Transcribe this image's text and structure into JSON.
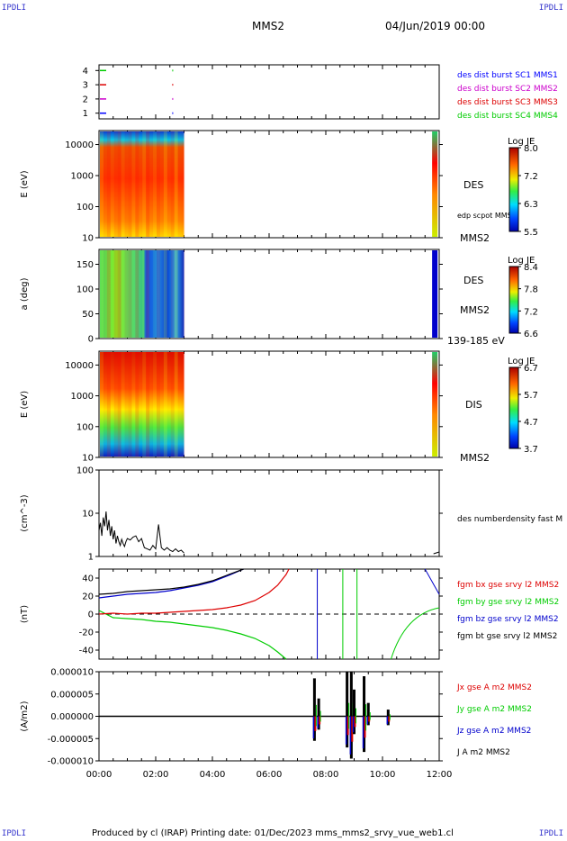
{
  "header": {
    "corner_tl": "IPDLI",
    "corner_tr": "IPDLI",
    "corner_bl": "IPDLI",
    "corner_br": "IPDLI",
    "spacecraft": "MMS2",
    "date": "04/Jun/2019 00:00"
  },
  "footer": {
    "text": "Produced by cl (IRAP)   Printing date: 01/Dec/2023   mms_mms2_srvy_vue_web1.cl"
  },
  "colors": {
    "sc1": "#0000ff",
    "sc2": "#cc00cc",
    "sc3": "#dd0000",
    "sc4": "#00cc00",
    "bx": "#dd0000",
    "by": "#00cc00",
    "bz": "#0000cc",
    "bt": "#000000"
  },
  "chart_data": [
    {
      "id": "burst",
      "type": "scatter",
      "ylim": [
        0.6,
        4.4
      ],
      "yticks": [
        "1",
        "2",
        "3",
        "4"
      ],
      "series": [
        {
          "name": "des dist burst SC1 MMS1",
          "color": "#0000ff",
          "y": 1
        },
        {
          "name": "des dist burst SC2 MMS2",
          "color": "#cc00cc",
          "y": 2
        },
        {
          "name": "des dist burst SC3 MMS3",
          "color": "#dd0000",
          "y": 3
        },
        {
          "name": "des dist burst SC4 MMS4",
          "color": "#00cc00",
          "y": 4
        }
      ]
    },
    {
      "id": "des_energy",
      "type": "heatmap",
      "ylabel": "E (eV)",
      "yticks": [
        "10",
        "100",
        "1000",
        "10000"
      ],
      "side_labels": [
        "DES",
        "edp scpot MMS2",
        "MMS2"
      ],
      "colorbar": {
        "title": "Log JE",
        "ticks": [
          "8.0",
          "7.2",
          "6.3",
          "5.5"
        ]
      },
      "data_end_hour": 3.0
    },
    {
      "id": "des_pitch",
      "type": "heatmap",
      "ylabel": "a (deg)",
      "yticks": [
        "0",
        "50",
        "100",
        "150"
      ],
      "side_labels": [
        "DES",
        "MMS2",
        "139-185 eV"
      ],
      "colorbar": {
        "title": "Log JE",
        "ticks": [
          "8.4",
          "7.8",
          "7.2",
          "6.6"
        ]
      },
      "data_end_hour": 3.0
    },
    {
      "id": "dis_energy",
      "type": "heatmap",
      "ylabel": "E (eV)",
      "yticks": [
        "10",
        "100",
        "1000",
        "10000"
      ],
      "side_labels": [
        "DIS",
        "MMS2"
      ],
      "colorbar": {
        "title": "Log JE",
        "ticks": [
          "6.7",
          "5.7",
          "4.7",
          "3.7"
        ]
      },
      "data_end_hour": 3.0
    },
    {
      "id": "density",
      "type": "line",
      "ylabel": "(cm^-3)",
      "yticks": [
        "1",
        "10",
        "100"
      ],
      "ylim": [
        1,
        100
      ],
      "legend": [
        "des numberdensity fast M"
      ],
      "series": [
        {
          "name": "des numberdensity fast M",
          "color": "#000000",
          "x": [
            0.0,
            0.05,
            0.1,
            0.15,
            0.2,
            0.25,
            0.3,
            0.35,
            0.4,
            0.45,
            0.5,
            0.55,
            0.6,
            0.65,
            0.7,
            0.75,
            0.8,
            0.85,
            0.9,
            0.95,
            1.0,
            1.1,
            1.2,
            1.3,
            1.4,
            1.5,
            1.6,
            1.7,
            1.8,
            1.9,
            2.0,
            2.1,
            2.2,
            2.3,
            2.4,
            2.5,
            2.6,
            2.7,
            2.8,
            2.9,
            3.0
          ],
          "y": [
            4,
            6,
            3,
            8,
            5,
            11,
            4,
            7,
            3,
            5,
            2.5,
            4,
            2,
            3,
            2.2,
            1.8,
            2.5,
            2,
            1.7,
            2.2,
            2.6,
            2.4,
            2.8,
            3.0,
            2.2,
            2.6,
            1.6,
            1.5,
            1.4,
            1.8,
            1.5,
            5.5,
            1.6,
            1.4,
            1.6,
            1.4,
            1.3,
            1.5,
            1.3,
            1.4,
            1.2
          ]
        }
      ]
    },
    {
      "id": "bfield",
      "type": "line",
      "ylabel": "(nT)",
      "yticks": [
        "-40",
        "-20",
        "0",
        "20",
        "40"
      ],
      "ylim": [
        -50,
        50
      ],
      "legend": [
        "fgm bx gse srvy l2 MMS2",
        "fgm by gse srvy l2 MMS2",
        "fgm bz gse srvy l2 MMS2",
        "fgm bt gse srvy l2 MMS2"
      ],
      "series": [
        {
          "name": "fgm bx gse srvy l2 MMS2",
          "color": "#dd0000",
          "x": [
            0,
            0.5,
            1,
            1.5,
            2,
            2.5,
            3,
            3.5,
            4,
            4.5,
            5,
            5.5,
            6,
            6.3,
            6.6,
            6.7
          ],
          "y": [
            0,
            1,
            0,
            1,
            1,
            2,
            3,
            4,
            5,
            7,
            10,
            15,
            24,
            32,
            44,
            50
          ]
        },
        {
          "name": "fgm by gse srvy l2 MMS2",
          "color": "#00cc00",
          "x": [
            0,
            0.5,
            1,
            1.5,
            2,
            2.5,
            3,
            3.5,
            4,
            4.5,
            5,
            5.5,
            6,
            6.3,
            6.6
          ],
          "y": [
            4,
            -4,
            -5,
            -6,
            -8,
            -9,
            -11,
            -13,
            -15,
            -18,
            -22,
            -27,
            -35,
            -42,
            -50
          ]
        },
        {
          "name": "fgm bz gse srvy l2 MMS2",
          "color": "#0000cc",
          "x": [
            0,
            0.5,
            1,
            1.5,
            2,
            2.5,
            3,
            3.5,
            4,
            4.5,
            5.1
          ],
          "y": [
            18,
            20,
            22,
            23,
            24,
            26,
            29,
            32,
            36,
            42,
            50
          ]
        },
        {
          "name": "fgm bt gse srvy l2 MMS2",
          "color": "#000000",
          "x": [
            0,
            0.5,
            1,
            1.5,
            2,
            2.5,
            3,
            3.5,
            4,
            4.5,
            5.1
          ],
          "y": [
            22,
            23,
            25,
            26,
            27,
            28,
            30,
            33,
            37,
            43,
            50
          ]
        }
      ]
    },
    {
      "id": "current",
      "type": "line",
      "ylabel": "(A/m2)",
      "yticks": [
        "-0.000010",
        "-0.000005",
        "0.000000",
        "0.000005",
        "0.000010"
      ],
      "ylim": [
        -1e-05,
        1e-05
      ],
      "legend": [
        "Jx gse A m2 MMS2",
        "Jy gse A m2 MMS2",
        "Jz gse A m2 MMS2",
        "J A m2 MMS2"
      ],
      "xticks": [
        "00:00",
        "02:00",
        "04:00",
        "06:00",
        "08:00",
        "10:00",
        "12:00"
      ],
      "xlim_hours": [
        0,
        12
      ]
    }
  ]
}
